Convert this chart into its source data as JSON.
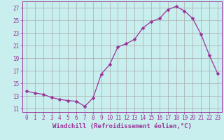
{
  "x": [
    0,
    1,
    2,
    3,
    4,
    5,
    6,
    7,
    8,
    9,
    10,
    11,
    12,
    13,
    14,
    15,
    16,
    17,
    18,
    19,
    20,
    21,
    22,
    23
  ],
  "y": [
    13.8,
    13.5,
    13.3,
    12.8,
    12.5,
    12.3,
    12.2,
    11.4,
    12.7,
    16.5,
    18.0,
    20.8,
    21.3,
    22.0,
    23.8,
    24.8,
    25.3,
    26.7,
    27.2,
    26.5,
    25.3,
    22.8,
    19.5,
    16.6
  ],
  "line_color": "#993399",
  "marker": "D",
  "marker_size": 2.5,
  "bg_color": "#c8eeee",
  "grid_color": "#aaaaaa",
  "tick_color": "#993399",
  "label_color": "#993399",
  "xlabel": "Windchill (Refroidissement éolien,°C)",
  "ylabel_ticks": [
    11,
    13,
    15,
    17,
    19,
    21,
    23,
    25,
    27
  ],
  "xlim": [
    -0.5,
    23.5
  ],
  "ylim": [
    10.5,
    28
  ],
  "xticks": [
    0,
    1,
    2,
    3,
    4,
    5,
    6,
    7,
    8,
    9,
    10,
    11,
    12,
    13,
    14,
    15,
    16,
    17,
    18,
    19,
    20,
    21,
    22,
    23
  ],
  "tick_font_size": 5.5,
  "xlabel_font_size": 6.5
}
